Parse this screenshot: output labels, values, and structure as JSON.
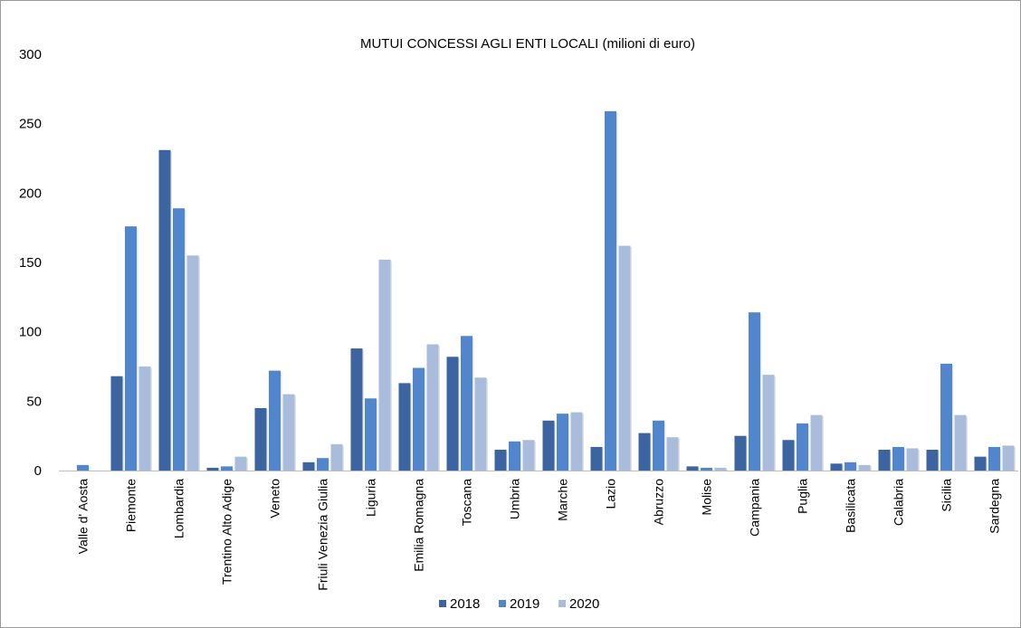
{
  "chart_data": {
    "type": "bar",
    "title": "MUTUI CONCESSI AGLI ENTI LOCALI  (milioni di euro)",
    "xlabel": "",
    "ylabel": "",
    "ylim": [
      0,
      300
    ],
    "yticks": [
      0,
      50,
      100,
      150,
      200,
      250,
      300
    ],
    "grid": false,
    "legend_position": "bottom-center",
    "categories": [
      "Valle d' Aosta",
      "Piemonte",
      "Lombardia",
      "Trentino Alto Adige",
      "Veneto",
      "Friuli Venezia Giulia",
      "Liguria",
      "Emilia Romagna",
      "Toscana",
      "Umbria",
      "Marche",
      "Lazio",
      "Abruzzo",
      "Molise",
      "Campania",
      "Puglia",
      "Basilicata",
      "Calabria",
      "Sicilia",
      "Sardegna"
    ],
    "series": [
      {
        "name": "2018",
        "color": "#3b64a0",
        "values": [
          0,
          68,
          231,
          2,
          45,
          6,
          88,
          63,
          82,
          15,
          36,
          17,
          27,
          3,
          25,
          22,
          5,
          15,
          15,
          10
        ]
      },
      {
        "name": "2019",
        "color": "#5186cd",
        "values": [
          4,
          176,
          189,
          3,
          72,
          9,
          52,
          74,
          97,
          21,
          41,
          259,
          36,
          2,
          114,
          34,
          6,
          17,
          77,
          17
        ]
      },
      {
        "name": "2020",
        "color": "#a9bcdc",
        "values": [
          0,
          75,
          155,
          10,
          55,
          19,
          152,
          91,
          67,
          22,
          42,
          162,
          24,
          2,
          69,
          40,
          4,
          16,
          40,
          18
        ]
      }
    ]
  }
}
